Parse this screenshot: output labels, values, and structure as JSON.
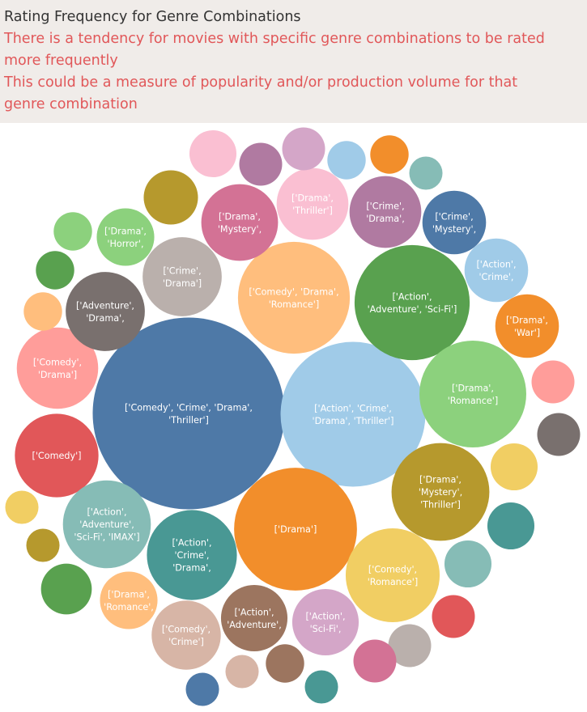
{
  "header": {
    "title": "Rating Frequency for Genre Combinations",
    "subtitle_line1": "There is a tendency for movies with specific genre combinations to be rated",
    "subtitle_line2": "more frequently",
    "subtitle_line3": "This could be a measure of popularity and/or production volume for that",
    "subtitle_line4": "genre combination"
  },
  "chart_data": {
    "type": "packed-bubble",
    "title": "Rating Frequency for Genre Combinations",
    "size_encodes": "Rating Frequency",
    "bubbles": [
      {
        "label": [
          "['Comedy', 'Crime', 'Drama',",
          "'Thriller']"
        ],
        "size": 100,
        "color": "#4e79a7"
      },
      {
        "label": [
          "['Action', 'Crime',",
          "'Drama', 'Thriller']"
        ],
        "size": 57,
        "color": "#a0cbe8"
      },
      {
        "label": [
          "['Drama']"
        ],
        "size": 41,
        "color": "#f28e2b"
      },
      {
        "label": [
          "['Comedy', 'Drama',",
          "'Romance']"
        ],
        "size": 34,
        "color": "#ffbe7d"
      },
      {
        "label": [
          "['Action',",
          "'Adventure', 'Sci-Fi']"
        ],
        "size": 36,
        "color": "#59a14f"
      },
      {
        "label": [
          "['Drama',",
          "'Romance']"
        ],
        "size": 31,
        "color": "#8cd17d"
      },
      {
        "label": [
          "['Drama',",
          "'Mystery',",
          "'Thriller']"
        ],
        "size": 26,
        "color": "#b6992d"
      },
      {
        "label": [
          "['Comedy',",
          "'Romance']"
        ],
        "size": 24,
        "color": "#f1ce63"
      },
      {
        "label": [
          "['Comedy']"
        ],
        "size": 19,
        "color": "#e15759"
      },
      {
        "label": [
          "['Comedy',",
          "'Drama']"
        ],
        "size": 18,
        "color": "#ff9d9a"
      },
      {
        "label": [
          "['Action',",
          "'Adventure',",
          "'Sci-Fi', 'IMAX']"
        ],
        "size": 21,
        "color": "#86bcb6"
      },
      {
        "label": [
          "['Action',",
          "'Crime',",
          "'Drama',"
        ],
        "size": 22,
        "color": "#499894"
      },
      {
        "label": [
          "['Adventure',",
          "'Drama',"
        ],
        "size": 17,
        "color": "#79706e"
      },
      {
        "label": [
          "['Crime',",
          "'Drama']"
        ],
        "size": 17,
        "color": "#bab0ac"
      },
      {
        "label": [
          "['Drama',",
          "'Mystery',"
        ],
        "size": 16,
        "color": "#d37295"
      },
      {
        "label": [
          "['Drama',",
          "'Thriller']"
        ],
        "size": 14,
        "color": "#fabfd2"
      },
      {
        "label": [
          "['Crime',",
          "'Drama',"
        ],
        "size": 14,
        "color": "#b07aa1"
      },
      {
        "label": [
          "['Crime',",
          "'Mystery',"
        ],
        "size": 11,
        "color": "#4e79a7"
      },
      {
        "label": [
          "['Action',",
          "'Crime',"
        ],
        "size": 11,
        "color": "#a0cbe8"
      },
      {
        "label": [
          "['Drama',",
          "'War']"
        ],
        "size": 11,
        "color": "#f28e2b"
      },
      {
        "label": [
          "['Drama',",
          "'Horror',"
        ],
        "size": 9,
        "color": "#8cd17d"
      },
      {
        "label": [
          "['Action',",
          "'Adventure',"
        ],
        "size": 12,
        "color": "#9c755f"
      },
      {
        "label": [
          "['Action',",
          "'Sci-Fi',"
        ],
        "size": 12,
        "color": "#d4a6c8"
      },
      {
        "label": [
          "['Comedy',",
          "'Crime']"
        ],
        "size": 13,
        "color": "#d7b5a6"
      },
      {
        "label": [
          "['Drama',",
          "'Romance',"
        ],
        "size": 9,
        "color": "#ffbe7d"
      },
      {
        "label": [],
        "size": 6,
        "color": "#fabfd2"
      },
      {
        "label": [],
        "size": 5,
        "color": "#b07aa1"
      },
      {
        "label": [],
        "size": 5,
        "color": "#d4a6c8"
      },
      {
        "label": [],
        "size": 4,
        "color": "#a0cbe8"
      },
      {
        "label": [],
        "size": 4,
        "color": "#f28e2b"
      },
      {
        "label": [],
        "size": 3,
        "color": "#86bcb6"
      },
      {
        "label": [],
        "size": 8,
        "color": "#b6992d"
      },
      {
        "label": [],
        "size": 4,
        "color": "#8cd17d"
      },
      {
        "label": [],
        "size": 4,
        "color": "#59a14f"
      },
      {
        "label": [],
        "size": 4,
        "color": "#ffbe7d"
      },
      {
        "label": [],
        "size": 5,
        "color": "#ff9d9a"
      },
      {
        "label": [],
        "size": 5,
        "color": "#79706e"
      },
      {
        "label": [],
        "size": 6,
        "color": "#f1ce63"
      },
      {
        "label": [],
        "size": 6,
        "color": "#499894"
      },
      {
        "label": [],
        "size": 6,
        "color": "#86bcb6"
      },
      {
        "label": [],
        "size": 5,
        "color": "#e15759"
      },
      {
        "label": [],
        "size": 5,
        "color": "#bab0ac"
      },
      {
        "label": [],
        "size": 5,
        "color": "#d37295"
      },
      {
        "label": [],
        "size": 3,
        "color": "#499894"
      },
      {
        "label": [],
        "size": 3,
        "color": "#4e79a7"
      },
      {
        "label": [],
        "size": 3,
        "color": "#d7b5a6"
      },
      {
        "label": [],
        "size": 4,
        "color": "#9c755f"
      },
      {
        "label": [],
        "size": 3,
        "color": "#f1ce63"
      },
      {
        "label": [],
        "size": 3,
        "color": "#b6992d"
      },
      {
        "label": [],
        "size": 7,
        "color": "#59a14f"
      }
    ]
  }
}
